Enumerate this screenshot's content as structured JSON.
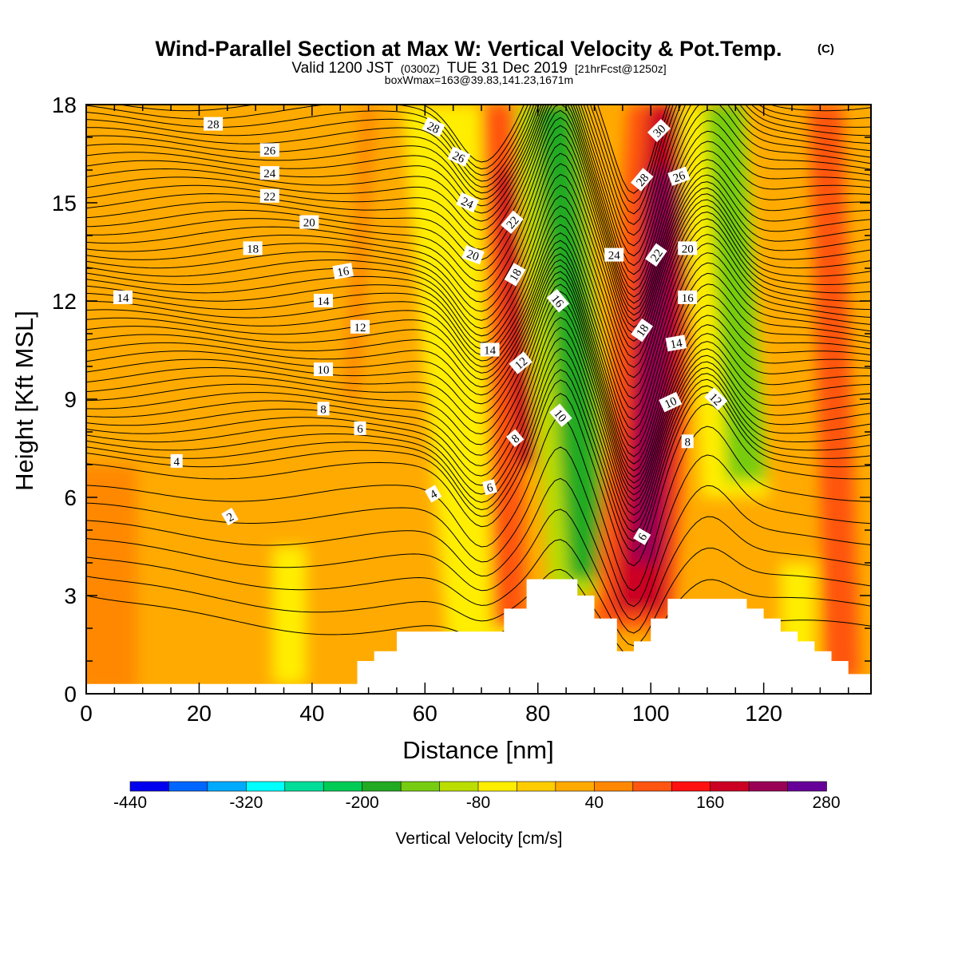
{
  "chart_data": {
    "type": "heatmap",
    "title": "Wind-Parallel Section at Max W: Vertical Velocity & Pot.Temp.",
    "title_mark": "(C)",
    "subtitle": {
      "prefix": "Valid 1200 JST",
      "utc": "(0300Z)",
      "date": "TUE 31 Dec 2019",
      "fcst": "[21hrFcst@1250z]"
    },
    "subtitle2": "boxWmax=163@39.83,141.23,1671m",
    "xlabel": "Distance [nm]",
    "ylabel": "Height [Kft MSL]",
    "xlim": [
      0,
      139
    ],
    "ylim": [
      0,
      18
    ],
    "xticks": [
      0,
      20,
      40,
      60,
      80,
      100,
      120
    ],
    "yticks": [
      0,
      3,
      6,
      9,
      12,
      15,
      18
    ],
    "colorbar": {
      "label": "Vertical Velocity [cm/s]",
      "min": -440,
      "max": 280,
      "step": 40,
      "tick_labels": [
        "-440",
        "-320",
        "-200",
        "-80",
        "40",
        "160",
        "280"
      ],
      "tick_values": [
        -440,
        -320,
        -200,
        -80,
        40,
        160,
        280
      ],
      "colors": [
        "#0000ee",
        "#0066ff",
        "#00aaff",
        "#00ffff",
        "#00dd99",
        "#00cc55",
        "#22aa22",
        "#77cc11",
        "#bbdd00",
        "#ffee00",
        "#ffcc00",
        "#ffaa00",
        "#ff8800",
        "#ff5511",
        "#ff1111",
        "#cc0022",
        "#990055",
        "#660099"
      ]
    },
    "vertical_velocity_bands": [
      {
        "x_bottom": 1,
        "x_top": 1,
        "half_width": 8,
        "y_bottom": 0,
        "y_top": 7,
        "w": 40
      },
      {
        "x_bottom": 36,
        "x_top": 36,
        "half_width": 3,
        "y_bottom": 0.3,
        "y_top": 4.5,
        "w": -80
      },
      {
        "x_bottom": 47,
        "x_top": 50,
        "half_width": 1.3,
        "y_bottom": 9,
        "y_top": 18,
        "w": 40
      },
      {
        "x_bottom": 71,
        "x_top": 63,
        "half_width": 7,
        "y_bottom": 1.5,
        "y_top": 18,
        "w": -80
      },
      {
        "x_bottom": 75,
        "x_top": 73,
        "half_width": 3,
        "y_bottom": 2,
        "y_top": 18,
        "w": 80
      },
      {
        "x_bottom": 78,
        "x_top": 74,
        "half_width": 1.6,
        "y_bottom": 7,
        "y_top": 16,
        "w": 160
      },
      {
        "x_bottom": 88,
        "x_top": 82,
        "half_width": 6,
        "y_bottom": 3,
        "y_top": 18,
        "w": -120
      },
      {
        "x_bottom": 89,
        "x_top": 83,
        "half_width": 3.5,
        "y_bottom": 3.5,
        "y_top": 18,
        "w": -200
      },
      {
        "x_bottom": 97,
        "x_top": 103,
        "half_width": 7,
        "y_bottom": 2,
        "y_top": 18,
        "w": 80
      },
      {
        "x_bottom": 98,
        "x_top": 104,
        "half_width": 4.5,
        "y_bottom": 2.5,
        "y_top": 18,
        "w": 160
      },
      {
        "x_bottom": 99,
        "x_top": 102,
        "half_width": 2.5,
        "y_bottom": 4,
        "y_top": 16,
        "w": 200
      },
      {
        "x_bottom": 115,
        "x_top": 111,
        "half_width": 6,
        "y_bottom": 6,
        "y_top": 18,
        "w": -80
      },
      {
        "x_bottom": 117,
        "x_top": 113,
        "half_width": 3.5,
        "y_bottom": 6.5,
        "y_top": 18,
        "w": -160
      },
      {
        "x_bottom": 134,
        "x_top": 131,
        "half_width": 3,
        "y_bottom": 0.5,
        "y_top": 18,
        "w": 80
      },
      {
        "x_bottom": 126,
        "x_top": 126,
        "half_width": 3,
        "y_bottom": 0.5,
        "y_top": 4,
        "w": -80
      }
    ],
    "contours_label": "Potential temperature",
    "contour_levels": [
      2,
      4,
      6,
      8,
      10,
      12,
      14,
      16,
      18,
      20,
      22,
      24,
      26,
      28,
      30
    ],
    "contour_labels": [
      {
        "text": "28",
        "x": 22.5,
        "y": 17.4,
        "rot": 0
      },
      {
        "text": "26",
        "x": 32.5,
        "y": 16.6,
        "rot": 0
      },
      {
        "text": "24",
        "x": 32.5,
        "y": 15.9,
        "rot": 0
      },
      {
        "text": "22",
        "x": 32.5,
        "y": 15.2,
        "rot": 0
      },
      {
        "text": "20",
        "x": 39.5,
        "y": 14.4,
        "rot": 0
      },
      {
        "text": "18",
        "x": 29.5,
        "y": 13.6,
        "rot": 0
      },
      {
        "text": "16",
        "x": 45.5,
        "y": 12.9,
        "rot": -10
      },
      {
        "text": "14",
        "x": 6.5,
        "y": 12.1,
        "rot": 0
      },
      {
        "text": "14",
        "x": 42,
        "y": 12,
        "rot": 0
      },
      {
        "text": "12",
        "x": 48.5,
        "y": 11.2,
        "rot": 0
      },
      {
        "text": "10",
        "x": 42,
        "y": 9.9,
        "rot": 0
      },
      {
        "text": "8",
        "x": 42,
        "y": 8.7,
        "rot": 0
      },
      {
        "text": "6",
        "x": 48.5,
        "y": 8.1,
        "rot": 0
      },
      {
        "text": "4",
        "x": 16,
        "y": 7.1,
        "rot": 0
      },
      {
        "text": "2",
        "x": 25.5,
        "y": 5.4,
        "rot": -30
      },
      {
        "text": "28",
        "x": 61.5,
        "y": 17.3,
        "rot": 25
      },
      {
        "text": "26",
        "x": 66,
        "y": 16.4,
        "rot": 25
      },
      {
        "text": "24",
        "x": 67.5,
        "y": 15,
        "rot": 25
      },
      {
        "text": "20",
        "x": 68.5,
        "y": 13.4,
        "rot": 20
      },
      {
        "text": "22",
        "x": 75.5,
        "y": 14.4,
        "rot": -50
      },
      {
        "text": "18",
        "x": 76,
        "y": 12.8,
        "rot": -60
      },
      {
        "text": "16",
        "x": 83.5,
        "y": 12,
        "rot": 50
      },
      {
        "text": "14",
        "x": 71.5,
        "y": 10.5,
        "rot": 0
      },
      {
        "text": "12",
        "x": 77,
        "y": 10.1,
        "rot": -40
      },
      {
        "text": "10",
        "x": 84,
        "y": 8.5,
        "rot": 50
      },
      {
        "text": "8",
        "x": 76,
        "y": 7.8,
        "rot": -40
      },
      {
        "text": "6",
        "x": 71.5,
        "y": 6.3,
        "rot": -15
      },
      {
        "text": "4",
        "x": 61.5,
        "y": 6.1,
        "rot": -30
      },
      {
        "text": "30",
        "x": 101.5,
        "y": 17.2,
        "rot": -45
      },
      {
        "text": "28",
        "x": 98.5,
        "y": 15.7,
        "rot": -50
      },
      {
        "text": "26",
        "x": 105,
        "y": 15.8,
        "rot": -20
      },
      {
        "text": "24",
        "x": 93.5,
        "y": 13.4,
        "rot": 0
      },
      {
        "text": "22",
        "x": 101,
        "y": 13.4,
        "rot": -55
      },
      {
        "text": "20",
        "x": 106.5,
        "y": 13.6,
        "rot": 0
      },
      {
        "text": "18",
        "x": 98.5,
        "y": 11.1,
        "rot": -55
      },
      {
        "text": "16",
        "x": 106.5,
        "y": 12.1,
        "rot": 0
      },
      {
        "text": "14",
        "x": 104.5,
        "y": 10.7,
        "rot": -10
      },
      {
        "text": "12",
        "x": 111.5,
        "y": 9,
        "rot": 45
      },
      {
        "text": "10",
        "x": 103.5,
        "y": 8.9,
        "rot": -25
      },
      {
        "text": "8",
        "x": 106.5,
        "y": 7.7,
        "rot": 0
      },
      {
        "text": "6",
        "x": 98.5,
        "y": 4.8,
        "rot": -60
      }
    ],
    "terrain": [
      [
        0,
        0.3
      ],
      [
        48,
        0.3
      ],
      [
        48,
        1
      ],
      [
        51,
        1
      ],
      [
        51,
        1.3
      ],
      [
        55,
        1.3
      ],
      [
        55,
        1.9
      ],
      [
        74,
        1.9
      ],
      [
        74,
        2.6
      ],
      [
        78,
        2.6
      ],
      [
        78,
        3.5
      ],
      [
        87,
        3.5
      ],
      [
        87,
        3
      ],
      [
        90,
        3
      ],
      [
        90,
        2.3
      ],
      [
        94,
        2.3
      ],
      [
        94,
        1.3
      ],
      [
        97,
        1.3
      ],
      [
        97,
        1.6
      ],
      [
        100,
        1.6
      ],
      [
        100,
        2.3
      ],
      [
        103,
        2.3
      ],
      [
        103,
        2.9
      ],
      [
        117,
        2.9
      ],
      [
        117,
        2.6
      ],
      [
        120,
        2.6
      ],
      [
        120,
        2.3
      ],
      [
        123,
        2.3
      ],
      [
        123,
        1.9
      ],
      [
        126,
        1.9
      ],
      [
        126,
        1.6
      ],
      [
        129,
        1.6
      ],
      [
        129,
        1.3
      ],
      [
        132,
        1.3
      ],
      [
        132,
        1
      ],
      [
        135,
        1
      ],
      [
        135,
        0.6
      ],
      [
        139,
        0.6
      ]
    ]
  }
}
